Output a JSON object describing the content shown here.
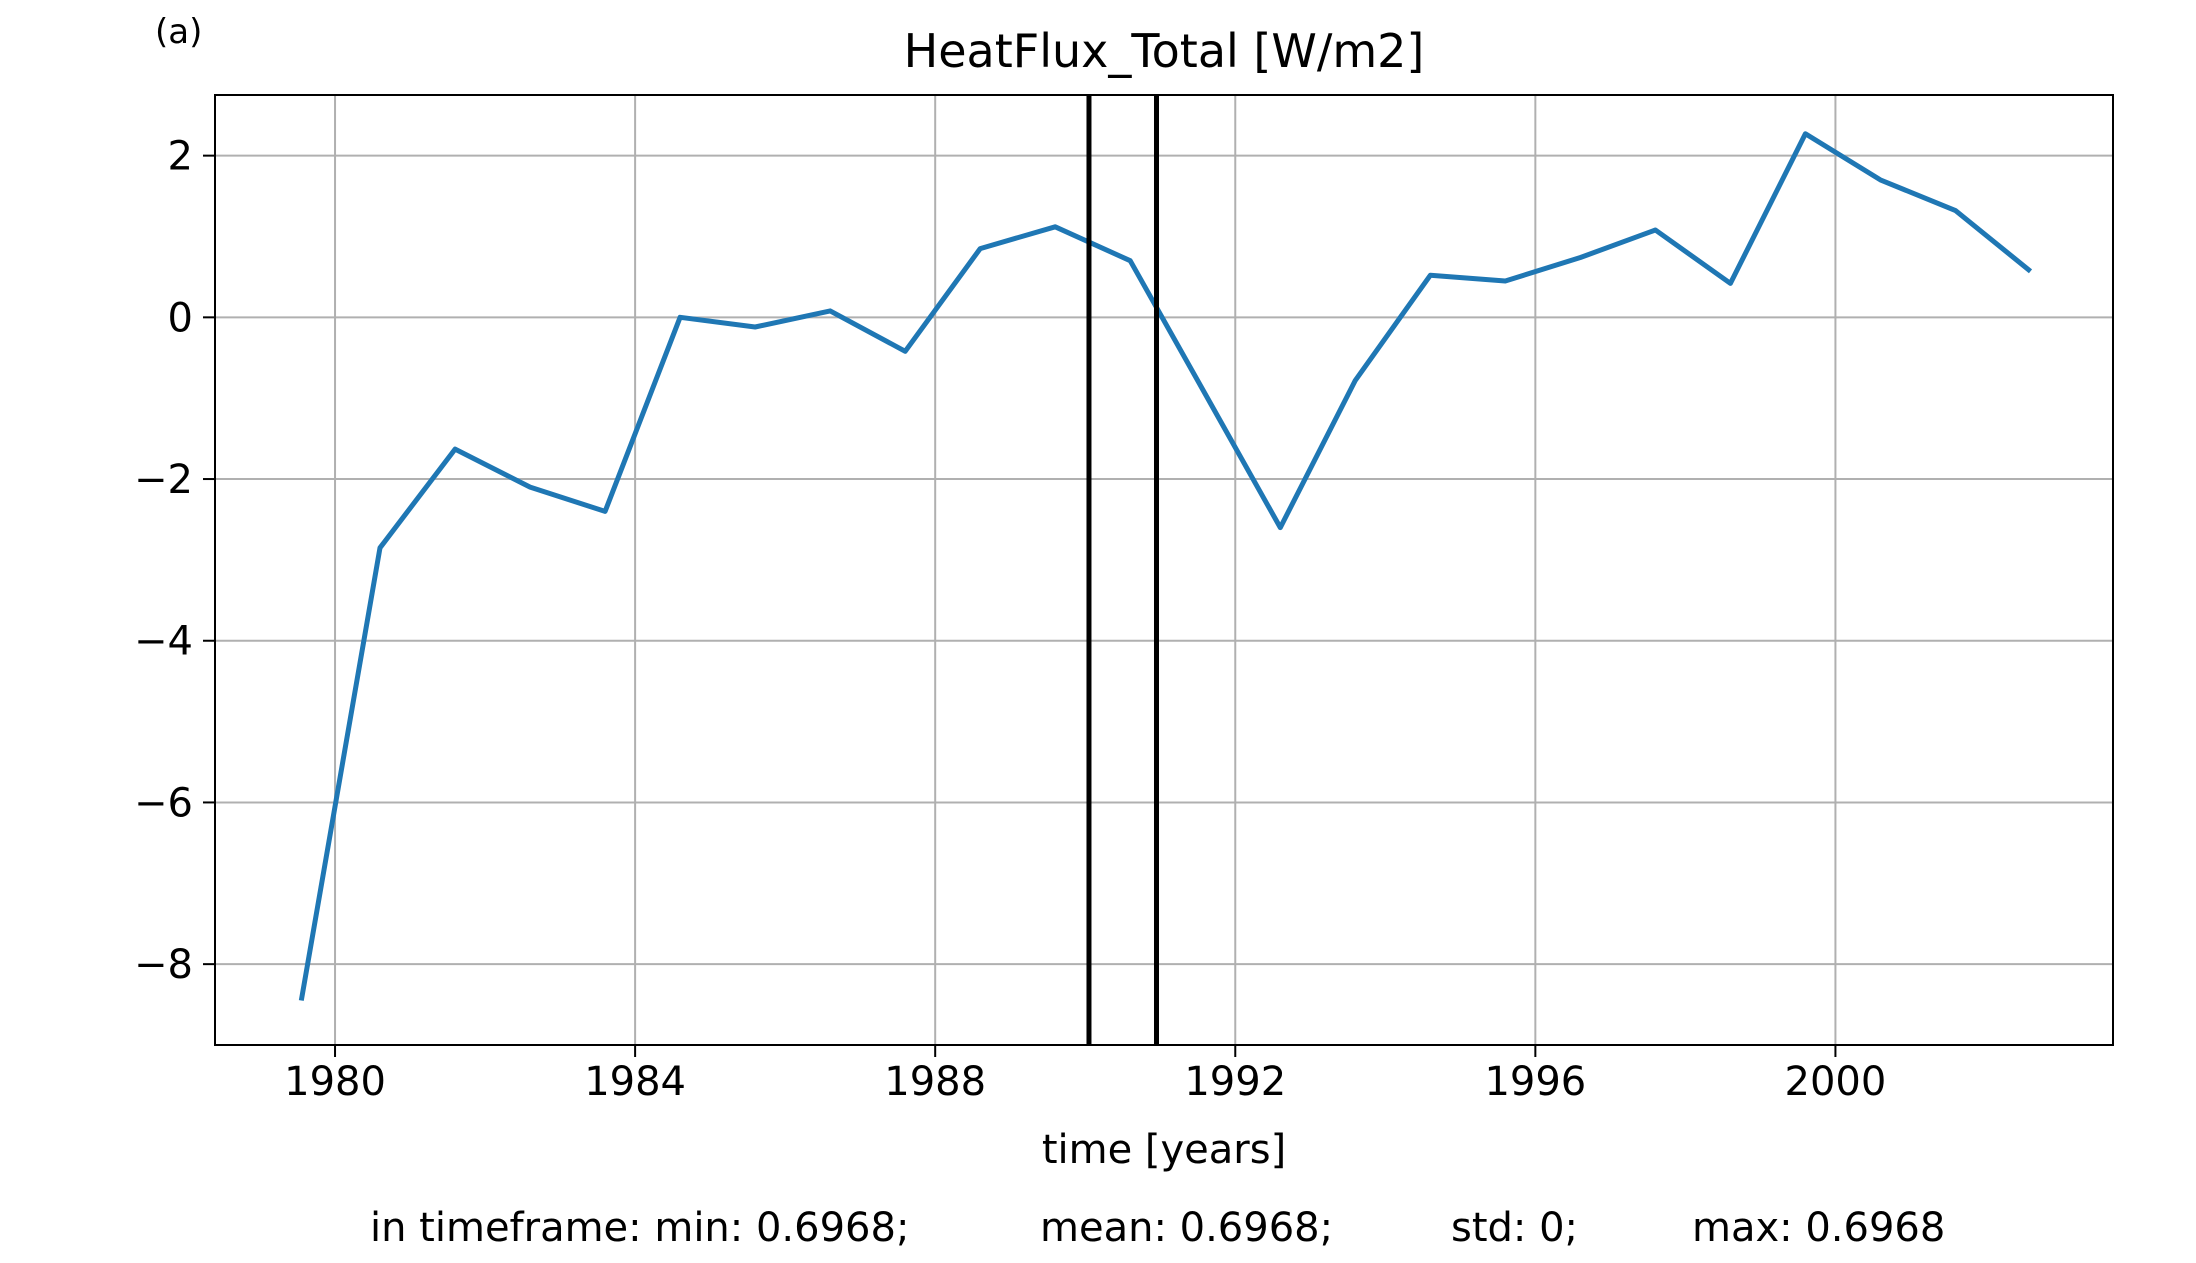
{
  "panel_label": "(a)",
  "chart_data": {
    "type": "line",
    "title": "HeatFlux_Total [W/m2]",
    "xlabel": "time [years]",
    "ylabel": "",
    "xlim": [
      1978.4,
      2003.7
    ],
    "ylim": [
      -9.0,
      2.75
    ],
    "xticks": [
      1980,
      1984,
      1988,
      1992,
      1996,
      2000
    ],
    "yticks": [
      2,
      0,
      -2,
      -4,
      -6,
      -8
    ],
    "ytick_labels": [
      "2",
      "0",
      "−2",
      "−4",
      "−6",
      "−8"
    ],
    "grid": true,
    "line_color": "#1f77b4",
    "series": [
      {
        "x": [
          1979.55,
          1980.6,
          1981.6,
          1982.6,
          1983.6,
          1984.6,
          1985.6,
          1986.6,
          1987.6,
          1988.6,
          1989.6,
          1990.6,
          1991.6,
          1992.6,
          1993.6,
          1994.6,
          1995.6,
          1996.6,
          1997.6,
          1998.6,
          1999.6,
          2000.6,
          2001.6,
          2002.6
        ],
        "y": [
          -8.45,
          -2.85,
          -1.63,
          -2.1,
          -2.4,
          0.0,
          -0.12,
          0.08,
          -0.42,
          0.85,
          1.12,
          0.7,
          -0.95,
          -2.6,
          -0.78,
          0.52,
          0.45,
          0.74,
          1.08,
          0.42,
          2.27,
          1.7,
          1.32,
          0.57
        ]
      }
    ],
    "vlines": {
      "x": [
        1990.05,
        1990.95
      ],
      "color": "#000000"
    }
  },
  "stats": {
    "min": "in timeframe: min: 0.6968;",
    "mean": "mean: 0.6968;",
    "std": "std: 0;",
    "max": "max: 0.6968"
  }
}
